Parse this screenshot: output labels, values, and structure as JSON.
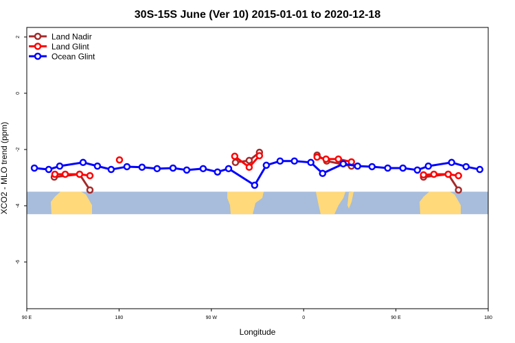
{
  "chart_data": {
    "type": "line",
    "title": "30S-15S June (Ver 10)   2015-01-01 to 2020-12-18",
    "xlabel": "Longitude",
    "ylabel": "XCO2 - MLO trend (ppm)",
    "xlim": [
      90,
      540
    ],
    "ylim": [
      -7.66,
      2.34
    ],
    "x_ticks": [
      {
        "value": 90,
        "label": "90 E"
      },
      {
        "value": 180,
        "label": "180"
      },
      {
        "value": 270,
        "label": "90 W"
      },
      {
        "value": 360,
        "label": "0"
      },
      {
        "value": 450,
        "label": "90 E"
      },
      {
        "value": 540,
        "label": "180"
      }
    ],
    "y_ticks": [
      {
        "value": 2,
        "label": "2"
      },
      {
        "value": 0,
        "label": "0"
      },
      {
        "value": -2,
        "label": "-2"
      },
      {
        "value": -4,
        "label": "-4"
      },
      {
        "value": -6,
        "label": "-6"
      }
    ],
    "legend_position": "top-left",
    "grid": false,
    "series": [
      {
        "name": "Land Nadir",
        "color": "#a52a2a",
        "segments": [
          [
            [
              116.8,
              -2.98
            ],
            [
              141.5,
              -2.88
            ],
            [
              151.6,
              -3.44
            ]
          ],
          [
            [
              293.5,
              -2.46
            ],
            [
              306.9,
              -2.39
            ],
            [
              316.9,
              -2.1
            ]
          ],
          [
            [
              373.1,
              -2.2
            ],
            [
              382.5,
              -2.41
            ],
            [
              406.6,
              -2.59
            ]
          ],
          [
            [
              476.9,
              -2.98
            ],
            [
              501,
              -2.88
            ],
            [
              511,
              -3.44
            ]
          ]
        ]
      },
      {
        "name": "Land Glint",
        "color": "#ff0000",
        "segments": [
          [
            [
              117.4,
              -2.88
            ],
            [
              127.5,
              -2.88
            ],
            [
              141.5,
              -2.88
            ],
            [
              151.6,
              -2.93
            ]
          ],
          [
            [
              180.4,
              -2.37
            ]
          ],
          [
            [
              292.8,
              -2.24
            ],
            [
              306.9,
              -2.63
            ],
            [
              316.9,
              -2.22
            ]
          ],
          [
            [
              373.1,
              -2.27
            ],
            [
              381.8,
              -2.34
            ],
            [
              393.9,
              -2.34
            ],
            [
              406.6,
              -2.44
            ]
          ],
          [
            [
              476.9,
              -2.9
            ],
            [
              487,
              -2.88
            ],
            [
              501,
              -2.88
            ],
            [
              511,
              -2.93
            ]
          ]
        ]
      },
      {
        "name": "Ocean Glint",
        "color": "#0000ff",
        "segments": [
          [
            [
              97.4,
              -2.66
            ],
            [
              111.4,
              -2.71
            ],
            [
              122.1,
              -2.59
            ],
            [
              144.9,
              -2.46
            ],
            [
              158.9,
              -2.59
            ],
            [
              172.3,
              -2.71
            ],
            [
              187.7,
              -2.61
            ],
            [
              202.4,
              -2.63
            ],
            [
              217.1,
              -2.68
            ],
            [
              232.6,
              -2.66
            ],
            [
              246,
              -2.73
            ],
            [
              262,
              -2.68
            ],
            [
              276,
              -2.8
            ],
            [
              286.8,
              -2.68
            ],
            [
              312.2,
              -3.27
            ],
            [
              323.6,
              -2.56
            ],
            [
              337,
              -2.41
            ],
            [
              351,
              -2.41
            ],
            [
              367,
              -2.46
            ],
            [
              378.5,
              -2.85
            ],
            [
              398.6,
              -2.51
            ],
            [
              412.6,
              -2.59
            ],
            [
              426.7,
              -2.61
            ],
            [
              442,
              -2.66
            ],
            [
              456.8,
              -2.66
            ],
            [
              470.9,
              -2.73
            ],
            [
              481.6,
              -2.59
            ],
            [
              504.3,
              -2.46
            ],
            [
              518.4,
              -2.61
            ],
            [
              531.8,
              -2.71
            ]
          ]
        ]
      }
    ],
    "map_strip": {
      "value_range": [
        -3.5,
        -4.3
      ],
      "ocean_color": "#a7bddb",
      "land_color": "#ffd97a"
    }
  }
}
